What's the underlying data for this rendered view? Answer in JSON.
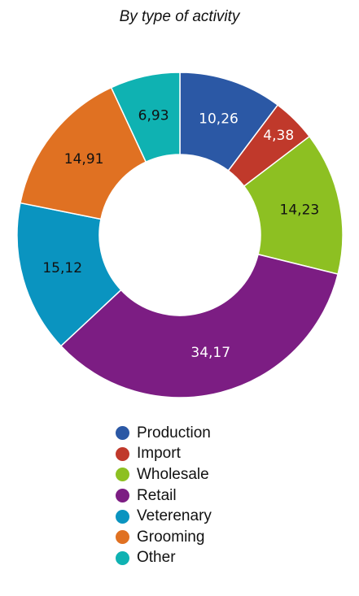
{
  "chart_data": {
    "type": "pie",
    "title": "By type of activity",
    "donut": true,
    "legend_position": "bottom",
    "slices": [
      {
        "name": "Production",
        "value": 10.26,
        "label": "10,26",
        "color": "#2b58a5",
        "label_color": "#ffffff"
      },
      {
        "name": "Import",
        "value": 4.38,
        "label": "4,38",
        "color": "#c0392b",
        "label_color": "#ffffff"
      },
      {
        "name": "Wholesale",
        "value": 14.23,
        "label": "14,23",
        "color": "#8dc022",
        "label_color": "#111111"
      },
      {
        "name": "Retail",
        "value": 34.17,
        "label": "34,17",
        "color": "#7c1d83",
        "label_color": "#ffffff"
      },
      {
        "name": "Veterenary",
        "value": 15.12,
        "label": "15,12",
        "color": "#0a94c0",
        "label_color": "#111111"
      },
      {
        "name": "Grooming",
        "value": 14.91,
        "label": "14,91",
        "color": "#e07122",
        "label_color": "#111111"
      },
      {
        "name": "Other",
        "value": 6.93,
        "label": "6,93",
        "color": "#0fb2b2",
        "label_color": "#111111"
      }
    ]
  }
}
